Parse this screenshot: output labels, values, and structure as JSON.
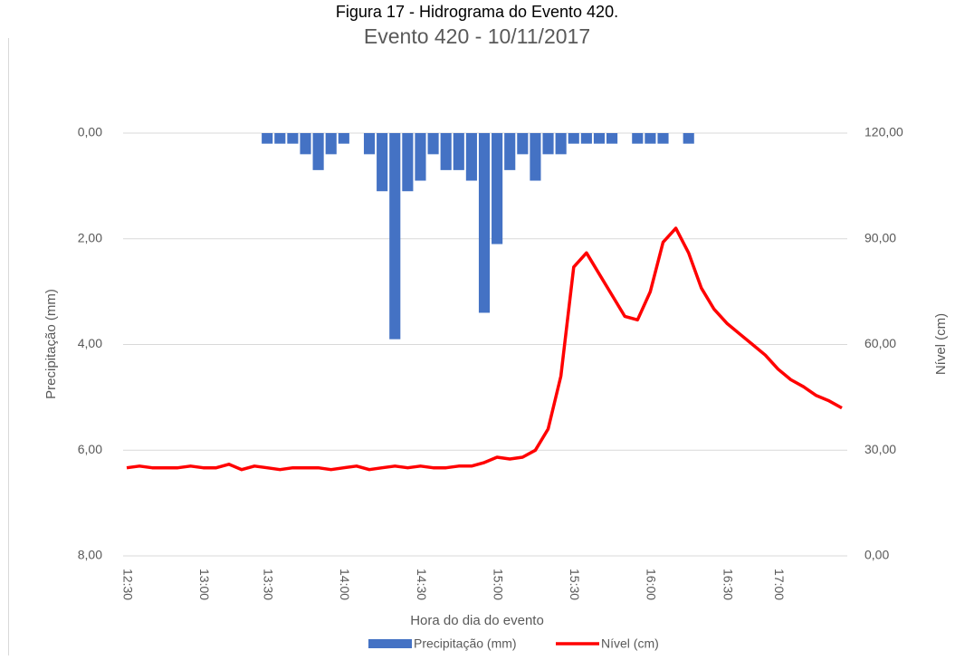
{
  "caption": "Figura 17 - Hidrograma do Evento 420.",
  "chart_data": {
    "type": "combo",
    "title": "Evento 420 - 10/11/2017",
    "x_label": "Hora do dia do evento",
    "y_label": "Precipitação (mm)",
    "y2_label": "Nível (cm)",
    "categories": [
      "12:30",
      null,
      null,
      null,
      null,
      null,
      "13:00",
      null,
      null,
      null,
      null,
      "13:30",
      null,
      null,
      null,
      null,
      null,
      "14:00",
      null,
      null,
      null,
      null,
      null,
      "14:30",
      null,
      null,
      null,
      null,
      null,
      "15:00",
      null,
      null,
      null,
      null,
      null,
      "15:30",
      null,
      null,
      null,
      null,
      null,
      "16:00",
      null,
      null,
      null,
      null,
      null,
      "16:30",
      null,
      null,
      null,
      "17:00",
      null,
      null,
      null,
      null,
      null
    ],
    "series": [
      {
        "name": "Precipitação (mm)",
        "type": "bar",
        "color": "#4472c4",
        "axis": "y",
        "values": [
          0,
          0,
          0,
          0,
          0,
          0,
          0,
          0,
          0,
          0,
          0,
          0.2,
          0.2,
          0.2,
          0.4,
          0.7,
          0.4,
          0.2,
          0,
          0.4,
          1.1,
          3.9,
          1.1,
          0.9,
          0.4,
          0.7,
          0.7,
          0.9,
          3.4,
          2.1,
          0.7,
          0.4,
          0.9,
          0.4,
          0.4,
          0.2,
          0.2,
          0.2,
          0.2,
          0,
          0.2,
          0.2,
          0.2,
          0,
          0.2,
          0,
          0,
          0,
          0,
          0,
          0,
          0,
          0,
          0,
          0,
          0,
          0
        ]
      },
      {
        "name": "Nível (cm)",
        "type": "line",
        "color": "#ff0000",
        "axis": "y2",
        "values": [
          25,
          25.5,
          25,
          25,
          25,
          25.5,
          25,
          25,
          26,
          24.5,
          25.5,
          25,
          24.5,
          25,
          25,
          25,
          24.5,
          25,
          25.5,
          24.5,
          25,
          25.5,
          25,
          25.5,
          25,
          25,
          25.5,
          25.5,
          26.5,
          28,
          27.5,
          28,
          30,
          36,
          51,
          82,
          86,
          80,
          74,
          68,
          67,
          75,
          89,
          93,
          86,
          76,
          70,
          66,
          63,
          60,
          57,
          53,
          50,
          48,
          45.5,
          44,
          42
        ]
      }
    ],
    "ylim": [
      0,
      8
    ],
    "y_reversed": true,
    "yticks": [
      {
        "value": 0,
        "label": "0,00"
      },
      {
        "value": 2,
        "label": "2,00"
      },
      {
        "value": 4,
        "label": "4,00"
      },
      {
        "value": 6,
        "label": "6,00"
      },
      {
        "value": 8,
        "label": "8,00"
      }
    ],
    "y2lim": [
      0,
      120
    ],
    "y2ticks": [
      {
        "value": 0,
        "label": "0,00"
      },
      {
        "value": 30,
        "label": "30,00"
      },
      {
        "value": 60,
        "label": "60,00"
      },
      {
        "value": 90,
        "label": "90,00"
      },
      {
        "value": 120,
        "label": "120,00"
      }
    ],
    "grid": true,
    "legend": "bottom"
  }
}
